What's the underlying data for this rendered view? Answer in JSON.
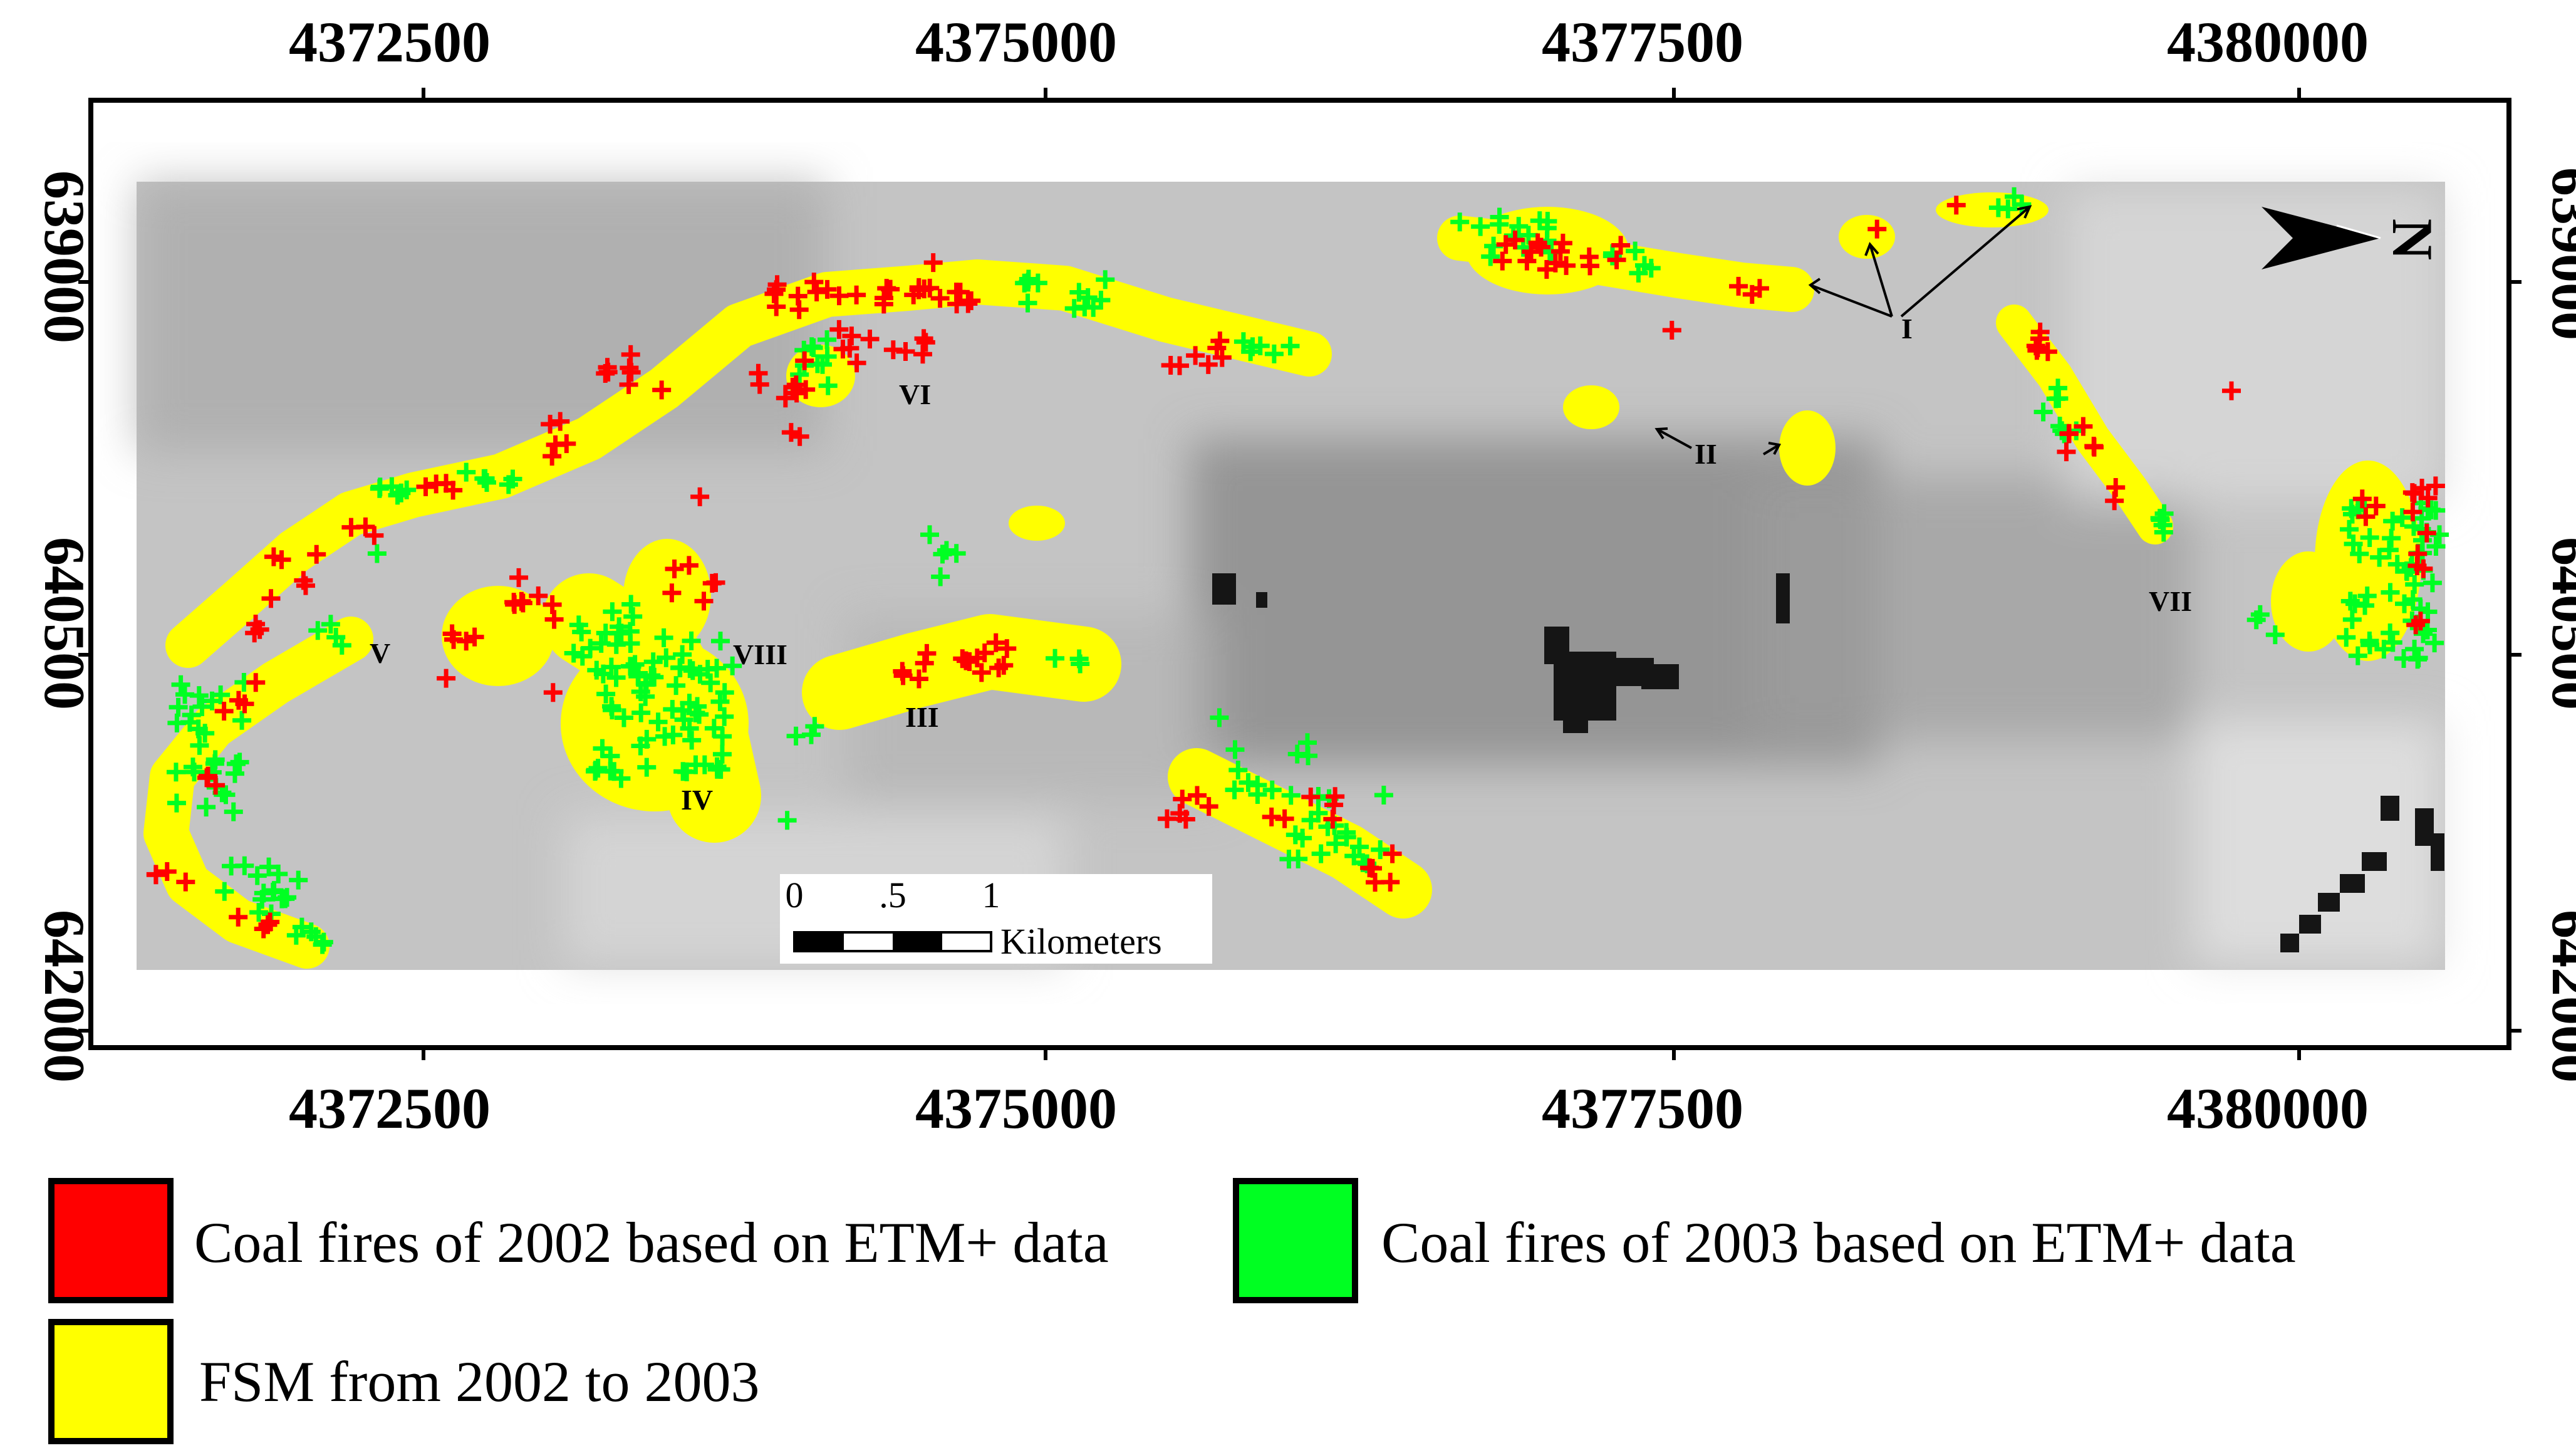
{
  "colors": {
    "fire_2002": "#ff0000",
    "fire_2003": "#00ff22",
    "fsm": "#ffff00",
    "frame": "#000000"
  },
  "map": {
    "x_ticks": [
      "4372500",
      "4375000",
      "4377500",
      "4380000"
    ],
    "y_ticks": [
      "639000",
      "640500",
      "642000"
    ],
    "region_labels": [
      "I",
      "II",
      "III",
      "IV",
      "V",
      "VI",
      "VII",
      "VIII"
    ],
    "north_arrow_label": "N",
    "scale_bar": {
      "ticks": [
        "0",
        ".5",
        "1"
      ],
      "unit": "Kilometers"
    }
  },
  "legend": {
    "items": [
      {
        "color": "#ff0000",
        "label": "Coal fires of 2002 based on ETM+ data"
      },
      {
        "color": "#00ff22",
        "label": "Coal fires of 2003 based on ETM+ data"
      },
      {
        "color": "#ffff00",
        "label": "FSM from 2002 to 2003"
      }
    ]
  }
}
